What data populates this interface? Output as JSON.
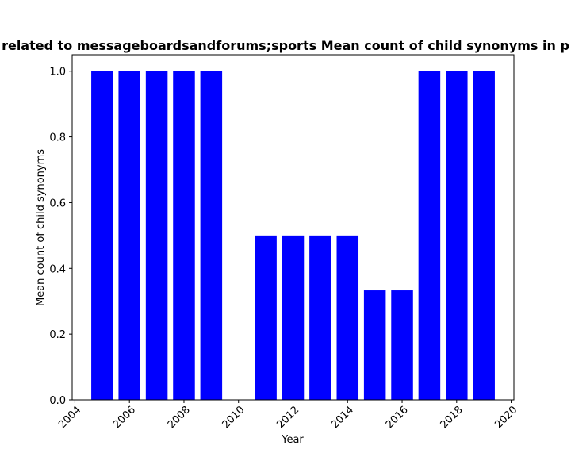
{
  "chart_data": {
    "type": "bar",
    "title": "related to messageboardsandforums;sports Mean count of child synonyms in p",
    "xlabel": "Year",
    "ylabel": "Mean count of child synonyms",
    "x": [
      2005,
      2006,
      2007,
      2008,
      2009,
      2011,
      2012,
      2013,
      2014,
      2015,
      2016,
      2017,
      2018,
      2019
    ],
    "values": [
      1.0,
      1.0,
      1.0,
      1.0,
      1.0,
      0.5,
      0.5,
      0.5,
      0.5,
      0.333,
      0.333,
      1.0,
      1.0,
      1.0
    ],
    "xlim": [
      2003.9,
      2020.1
    ],
    "ylim": [
      0,
      1.05
    ],
    "xticks": [
      "2004",
      "2006",
      "2008",
      "2010",
      "2012",
      "2014",
      "2016",
      "2018",
      "2020"
    ],
    "yticks": [
      "0.0",
      "0.2",
      "0.4",
      "0.6",
      "0.8",
      "1.0"
    ],
    "bar_color": "#0000ff",
    "grid": false,
    "legend": "none"
  }
}
